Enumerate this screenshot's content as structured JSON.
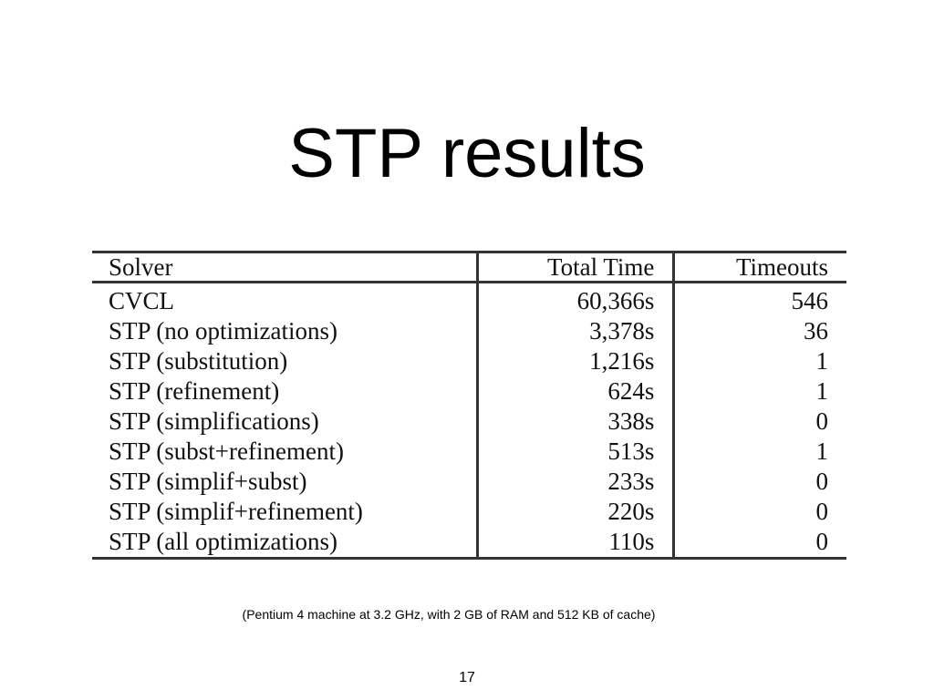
{
  "slide": {
    "title": "STP results",
    "footnote": "(Pentium 4 machine at 3.2 GHz, with 2 GB of RAM and 512 KB of cache)",
    "page_number": "17"
  },
  "table": {
    "headers": {
      "solver": "Solver",
      "total_time": "Total Time",
      "timeouts": "Timeouts"
    },
    "rows": [
      {
        "solver": "CVCL",
        "total_time": "60,366s",
        "timeouts": "546"
      },
      {
        "solver": "STP (no optimizations)",
        "total_time": "3,378s",
        "timeouts": "36"
      },
      {
        "solver": "STP (substitution)",
        "total_time": "1,216s",
        "timeouts": "1"
      },
      {
        "solver": "STP (refinement)",
        "total_time": "624s",
        "timeouts": "1"
      },
      {
        "solver": "STP (simplifications)",
        "total_time": "338s",
        "timeouts": "0"
      },
      {
        "solver": "STP (subst+refinement)",
        "total_time": "513s",
        "timeouts": "1"
      },
      {
        "solver": "STP (simplif+subst)",
        "total_time": "233s",
        "timeouts": "0"
      },
      {
        "solver": "STP (simplif+refinement)",
        "total_time": "220s",
        "timeouts": "0"
      },
      {
        "solver": "STP (all optimizations)",
        "total_time": "110s",
        "timeouts": "0"
      }
    ]
  }
}
